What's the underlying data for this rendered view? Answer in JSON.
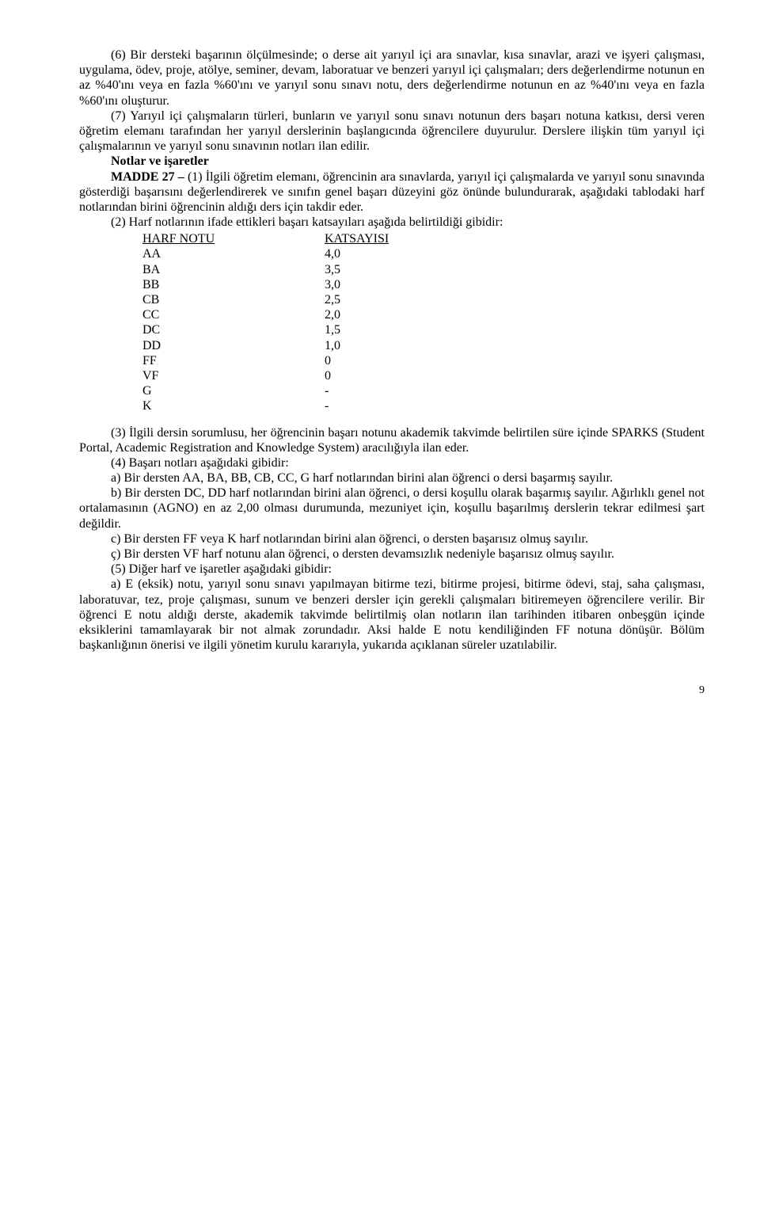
{
  "p1": "(6) Bir dersteki başarının ölçülmesinde; o derse ait yarıyıl içi ara sınavlar, kısa sınavlar, arazi ve işyeri çalışması, uygulama, ödev, proje, atölye, seminer, devam, laboratuar ve benzeri yarıyıl içi çalışmaları; ders değerlendirme notunun en az %40'ını veya en fazla %60'ını ve yarıyıl sonu sınavı notu, ders değerlendirme notunun en az %40'ını veya en fazla %60'ını oluşturur.",
  "p2": "(7) Yarıyıl içi çalışmaların türleri, bunların ve yarıyıl sonu sınavı notunun ders başarı notuna katkısı, dersi veren öğretim elemanı tarafından her yarıyıl derslerinin başlangıcında öğrencilere duyurulur. Derslere ilişkin tüm yarıyıl içi çalışmalarının ve yarıyıl sonu sınavının notları ilan edilir.",
  "section_title": "Notlar ve işaretler",
  "p3a": "MADDE 27 – ",
  "p3b": "(1) İlgili öğretim elemanı, öğrencinin ara sınavlarda, yarıyıl içi çalışmalarda ve yarıyıl sonu sınavında gösterdiği başarısını değerlendirerek ve sınıfın genel başarı düzeyini göz önünde bulundurarak, aşağıdaki tablodaki harf notlarından birini öğrencinin aldığı ders için takdir eder.",
  "p4": "(2) Harf notlarının ifade ettikleri başarı katsayıları aşağıda belirtildiği gibidir:",
  "header1": "HARF NOTU",
  "header2": "KATSAYISI",
  "grades": [
    {
      "g": "AA",
      "k": "4,0"
    },
    {
      "g": "BA",
      "k": "3,5"
    },
    {
      "g": "BB",
      "k": "3,0"
    },
    {
      "g": "CB",
      "k": "2,5"
    },
    {
      "g": "CC",
      "k": "2,0"
    },
    {
      "g": "DC",
      "k": "1,5"
    },
    {
      "g": "DD",
      "k": "1,0"
    },
    {
      "g": "FF",
      "k": "0"
    },
    {
      "g": "VF",
      "k": "0"
    },
    {
      "g": "G",
      "k": "-"
    },
    {
      "g": "K",
      "k": "-"
    }
  ],
  "p5": "(3) İlgili dersin sorumlusu, her öğrencinin başarı notunu akademik takvimde belirtilen süre içinde SPARKS (Student Portal, Academic Registration and Knowledge System) aracılığıyla ilan eder.",
  "p6": "(4) Başarı notları aşağıdaki gibidir:",
  "p7": "a) Bir dersten AA, BA, BB, CB, CC, G harf notlarından birini alan öğrenci o dersi başarmış sayılır.",
  "p8": "b) Bir dersten DC, DD harf notlarından birini alan öğrenci, o dersi koşullu olarak başarmış sayılır. Ağırlıklı genel not ortalamasının (AGNO) en az 2,00 olması durumunda, mezuniyet için, koşullu başarılmış derslerin tekrar edilmesi şart değildir.",
  "p9": "c) Bir dersten FF veya K harf notlarından birini alan öğrenci, o dersten başarısız olmuş sayılır.",
  "p10": "ç) Bir dersten VF harf notunu alan öğrenci, o dersten devamsızlık nedeniyle başarısız olmuş sayılır.",
  "p11": "(5) Diğer harf ve işaretler aşağıdaki gibidir:",
  "p12": "a) E (eksik) notu, yarıyıl sonu sınavı yapılmayan bitirme tezi, bitirme projesi, bitirme ödevi, staj, saha çalışması, laboratuvar, tez, proje çalışması, sunum ve benzeri dersler için gerekli çalışmaları bitiremeyen öğrencilere verilir. Bir öğrenci E notu aldığı derste, akademik takvimde belirtilmiş olan notların ilan tarihinden itibaren onbeşgün içinde eksiklerini tamamlayarak bir not almak zorundadır. Aksi halde E notu kendiliğinden FF notuna dönüşür. Bölüm başkanlığının önerisi ve ilgili yönetim kurulu kararıyla, yukarıda açıklanan süreler uzatılabilir.",
  "page_number": "9"
}
